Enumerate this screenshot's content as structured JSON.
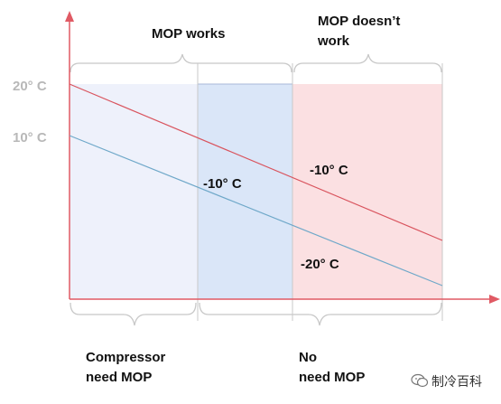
{
  "y_ticks": [
    {
      "label": "20° C",
      "value": 20
    },
    {
      "label": "10° C",
      "value": 10
    }
  ],
  "regions": {
    "top_left": "MOP works",
    "top_right_line1": "MOP doesn’t",
    "top_right_line2": "work",
    "bottom_left_line1": "Compressor",
    "bottom_left_line2": "need MOP",
    "bottom_right_line1": "No",
    "bottom_right_line2": "need MOP"
  },
  "annotations": {
    "mid_value": "-10° C",
    "upper_line_end": "-10° C",
    "lower_line_end": "-20° C"
  },
  "lines": [
    {
      "name": "upper",
      "color": "#d9545e"
    },
    {
      "name": "lower",
      "color": "#6fa8c9"
    }
  ],
  "colors": {
    "axis": "#e05a64",
    "left_fill": "#eef1fb",
    "mid_fill": "#dae6f8",
    "right_fill": "#fbe0e2",
    "border": "#c8c8c8"
  },
  "watermark": "制冷百科"
}
